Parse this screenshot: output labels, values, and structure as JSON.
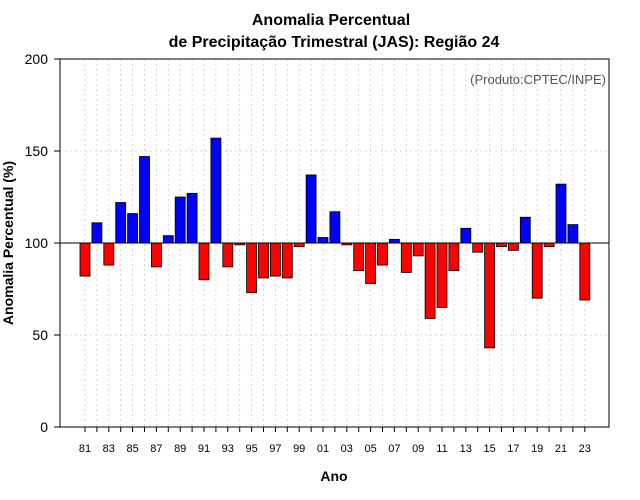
{
  "chart_data": {
    "type": "bar",
    "title": "Anomalia Percentual",
    "subtitle": "de Precipitação Trimestral (JAS): Região 24",
    "xlabel": "Ano",
    "ylabel": "Anomalia Percentual (%)",
    "credit": "(Produto:CPTEC/INPE)",
    "ylim": [
      0,
      200
    ],
    "yticks": [
      0,
      50,
      100,
      150,
      200
    ],
    "baseline": 100,
    "grid": true,
    "colors": {
      "above": "#0000ff",
      "below": "#ff0000",
      "outline": "#000000"
    },
    "categories": [
      "81",
      "82",
      "83",
      "84",
      "85",
      "86",
      "87",
      "88",
      "89",
      "90",
      "91",
      "92",
      "93",
      "94",
      "95",
      "96",
      "97",
      "98",
      "99",
      "00",
      "01",
      "02",
      "03",
      "04",
      "05",
      "06",
      "07",
      "08",
      "09",
      "10",
      "11",
      "12",
      "13",
      "14",
      "15",
      "16",
      "17",
      "18",
      "19",
      "20",
      "21",
      "22",
      "23"
    ],
    "values": [
      82,
      111,
      88,
      122,
      116,
      147,
      87,
      104,
      125,
      127,
      80,
      157,
      87,
      99,
      73,
      81,
      82,
      81,
      98,
      137,
      103,
      117,
      99,
      85,
      78,
      88,
      102,
      84,
      93,
      59,
      65,
      85,
      108,
      95,
      43,
      98,
      96,
      114,
      70,
      98,
      132,
      110,
      69
    ],
    "xtick_labels": [
      "81",
      "83",
      "85",
      "87",
      "89",
      "91",
      "93",
      "95",
      "97",
      "99",
      "01",
      "03",
      "05",
      "07",
      "09",
      "11",
      "13",
      "15",
      "17",
      "19",
      "21",
      "23"
    ]
  }
}
